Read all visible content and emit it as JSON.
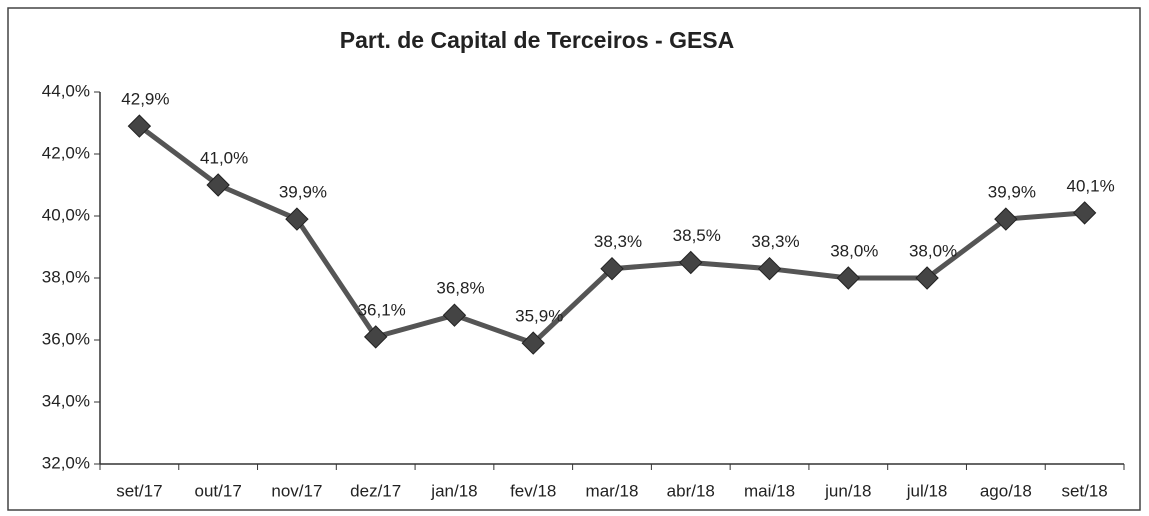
{
  "chart_data": {
    "type": "line",
    "title": "Part. de Capital de Terceiros - GESA",
    "categories": [
      "set/17",
      "out/17",
      "nov/17",
      "dez/17",
      "jan/18",
      "fev/18",
      "mar/18",
      "abr/18",
      "mai/18",
      "jun/18",
      "jul/18",
      "ago/18",
      "set/18"
    ],
    "values": [
      42.9,
      41.0,
      39.9,
      36.1,
      36.8,
      35.9,
      38.3,
      38.5,
      38.3,
      38.0,
      38.0,
      39.9,
      40.1
    ],
    "value_labels": [
      "42,9%",
      "41,0%",
      "39,9%",
      "36,1%",
      "36,8%",
      "35,9%",
      "38,3%",
      "38,5%",
      "38,3%",
      "38,0%",
      "38,0%",
      "39,9%",
      "40,1%"
    ],
    "color": "#555555",
    "ylim": [
      32,
      44
    ],
    "yticks": [
      {
        "value": 32,
        "label": "32,0%"
      },
      {
        "value": 34,
        "label": "34,0%"
      },
      {
        "value": 36,
        "label": "36,0%"
      },
      {
        "value": 38,
        "label": "38,0%"
      },
      {
        "value": 40,
        "label": "40,0%"
      },
      {
        "value": 42,
        "label": "42,0%"
      },
      {
        "value": 44,
        "label": "44,0%"
      }
    ],
    "grid": false
  }
}
